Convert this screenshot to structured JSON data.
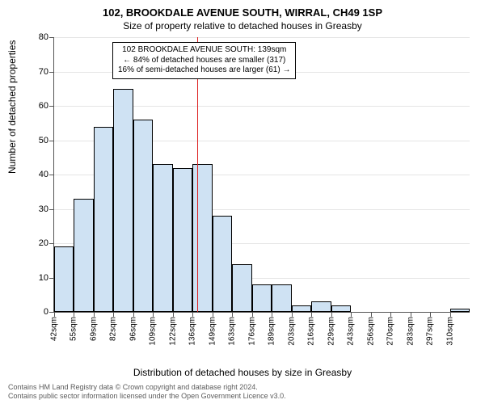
{
  "title_main": "102, BROOKDALE AVENUE SOUTH, WIRRAL, CH49 1SP",
  "title_sub": "Size of property relative to detached houses in Greasby",
  "y_axis_title": "Number of detached properties",
  "x_axis_title": "Distribution of detached houses by size in Greasby",
  "footer_line1": "Contains HM Land Registry data © Crown copyright and database right 2024.",
  "footer_line2": "Contains public sector information licensed under the Open Government Licence v3.0.",
  "annotation": {
    "line1": "102 BROOKDALE AVENUE SOUTH: 139sqm",
    "line2": "← 84% of detached houses are smaller (317)",
    "line3": "16% of semi-detached houses are larger (61) →"
  },
  "chart": {
    "type": "histogram",
    "ylim": [
      0,
      80
    ],
    "ytick_step": 10,
    "bar_fill": "#cfe2f3",
    "bar_stroke": "#000000",
    "plot_bg": "#ffffff",
    "grid_color": "#e5e5e5",
    "marker_color": "#d22",
    "marker_value_sqm": 139,
    "x_start_sqm": 42,
    "x_bin_width_sqm": 13.4,
    "x_labels": [
      "42sqm",
      "55sqm",
      "69sqm",
      "82sqm",
      "96sqm",
      "109sqm",
      "122sqm",
      "136sqm",
      "149sqm",
      "163sqm",
      "176sqm",
      "189sqm",
      "203sqm",
      "216sqm",
      "229sqm",
      "243sqm",
      "256sqm",
      "270sqm",
      "283sqm",
      "297sqm",
      "310sqm"
    ],
    "values": [
      19,
      33,
      54,
      65,
      56,
      43,
      42,
      43,
      28,
      14,
      8,
      8,
      2,
      3,
      2,
      0,
      0,
      0,
      0,
      0,
      1
    ]
  }
}
